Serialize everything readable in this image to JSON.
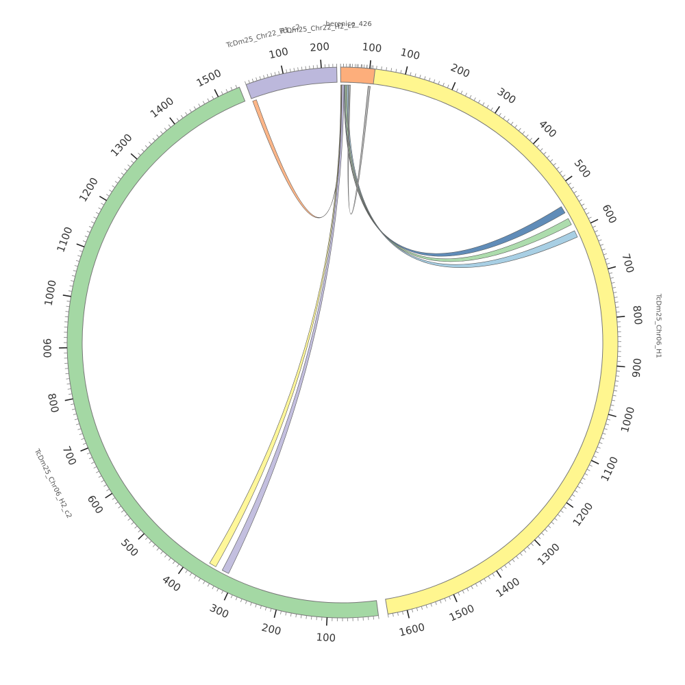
{
  "chart_data": {
    "type": "circos",
    "segments": [
      {
        "id": "berenice_426",
        "label": "berenice_426",
        "length": 12,
        "color": "#9ecae1",
        "tick_labels": []
      },
      {
        "id": "chr06_h1",
        "label": "TcDm25_Chr06_H1",
        "length": 1640,
        "color": "#fff68f",
        "tick_labels": [
          "100",
          "200",
          "300",
          "400",
          "500",
          "600",
          "700",
          "800",
          "900",
          "1000",
          "1100",
          "1200",
          "1300",
          "1400",
          "1500",
          "1600"
        ]
      },
      {
        "id": "chr06_h2",
        "label": "TcDm25_Chr06_H2_c2",
        "length": 1545,
        "color": "#a4d8a4",
        "tick_labels": [
          "100",
          "200",
          "300",
          "400",
          "500",
          "600",
          "700",
          "800",
          "900",
          "1000",
          "1100",
          "1200",
          "1300",
          "1400",
          "1500"
        ]
      },
      {
        "id": "chr22_h1",
        "label": "TcDm25_Chr22_H1_c2",
        "length": 240,
        "color": "#bcb8dc",
        "tick_labels": [
          "100",
          "200"
        ]
      },
      {
        "id": "chr22_h2",
        "label": "TcDm25_Chr22_H2_c2",
        "length": 118,
        "color": "#fdae7b",
        "tick_labels": [
          "100"
        ]
      }
    ],
    "links": [
      {
        "from": "berenice_426",
        "from_range": [
          1,
          2
        ],
        "to": "chr06_h1",
        "to_range": [
          540,
          556
        ],
        "color": "#4f7fb0"
      },
      {
        "from": "berenice_426",
        "from_range": [
          3,
          5
        ],
        "to": "chr06_h1",
        "to_range": [
          570,
          585
        ],
        "color": "#a4d8a4"
      },
      {
        "from": "berenice_426",
        "from_range": [
          6,
          8
        ],
        "to": "chr06_h1",
        "to_range": [
          600,
          615
        ],
        "color": "#9ecae1"
      },
      {
        "from": "chr22_h1",
        "from_range": [
          1,
          12
        ],
        "to": "chr22_h2",
        "to_range": [
          2,
          6
        ],
        "color": "#fdae7b"
      },
      {
        "from": "chr22_h2",
        "from_range": [
          4,
          12
        ],
        "to": "chr06_h2",
        "to_range": [
          315,
          330
        ],
        "color": "#bcb8dc"
      },
      {
        "from": "chr22_h2",
        "from_range": [
          0,
          2
        ],
        "to": "chr06_h2",
        "to_range": [
          345,
          360
        ],
        "color": "#fff68f"
      },
      {
        "from": "chr22_h2",
        "from_range": [
          100,
          108
        ],
        "to": "berenice_426",
        "to_range": [
          9,
          11
        ],
        "color": "#aaaaaa"
      }
    ]
  }
}
